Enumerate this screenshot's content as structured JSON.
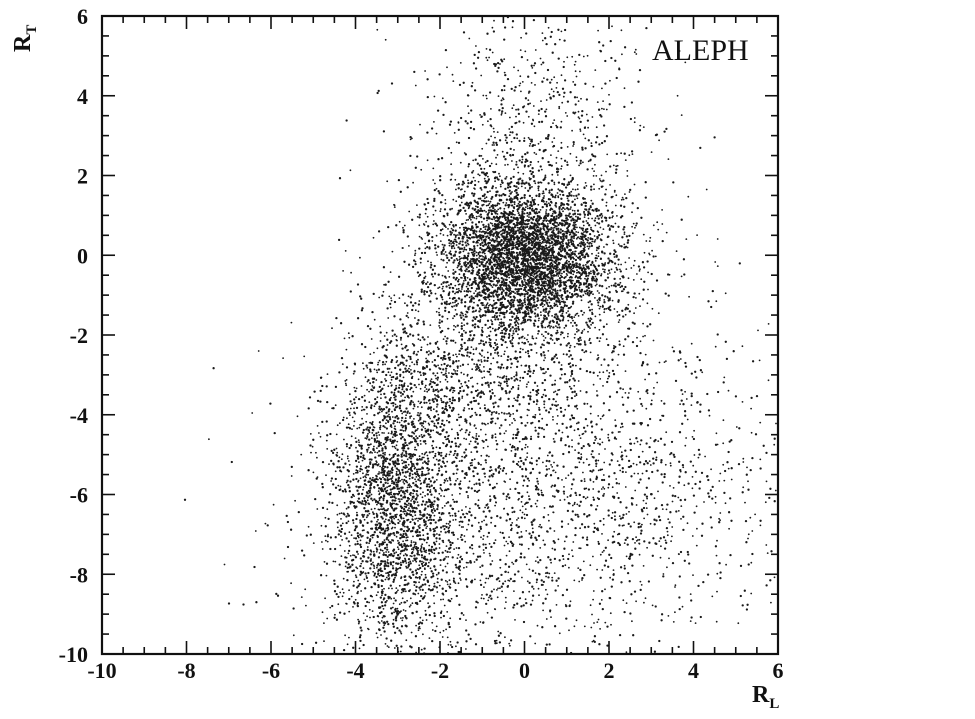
{
  "chart_data": {
    "type": "scatter",
    "experiment_label": "ALEPH",
    "xlabel": "R",
    "xlabel_sub": "L",
    "ylabel": "R",
    "ylabel_sub": "T",
    "xlim": [
      -10,
      6
    ],
    "ylim": [
      -10,
      6
    ],
    "xticks": [
      "-10",
      "-8",
      "-6",
      "-4",
      "-2",
      "0",
      "2",
      "4",
      "6"
    ],
    "yticks": [
      "-10",
      "-8",
      "-6",
      "-4",
      "-2",
      "0",
      "2",
      "4",
      "6"
    ],
    "grid": false,
    "point_color": "#1a1a1a",
    "clusters": [
      {
        "center": [
          0.0,
          0.0
        ],
        "spread": [
          1.0,
          0.9
        ],
        "count": 3800
      },
      {
        "center": [
          0.2,
          -1.0
        ],
        "spread": [
          1.6,
          2.2
        ],
        "count": 1400
      },
      {
        "center": [
          -3.0,
          -6.2
        ],
        "spread": [
          0.75,
          1.9
        ],
        "count": 2300
      },
      {
        "center": [
          -0.8,
          -6.5
        ],
        "spread": [
          2.3,
          2.0
        ],
        "count": 1400
      },
      {
        "center": [
          2.8,
          -6.0
        ],
        "spread": [
          2.2,
          2.0
        ],
        "count": 700
      },
      {
        "center": [
          0.3,
          3.5
        ],
        "spread": [
          1.3,
          1.4
        ],
        "count": 500
      },
      {
        "center": [
          -1.5,
          -3.0
        ],
        "spread": [
          1.2,
          1.0
        ],
        "count": 500
      }
    ]
  }
}
